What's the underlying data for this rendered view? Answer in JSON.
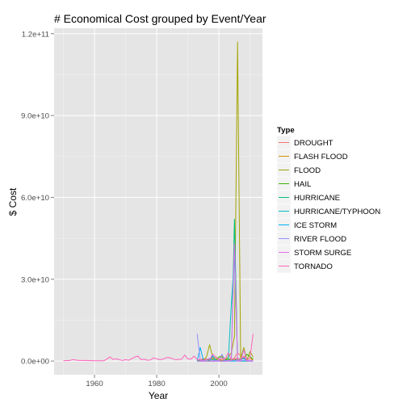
{
  "chart_data": {
    "type": "line",
    "title": "# Economical Cost grouped by Event/Year",
    "xlabel": "Year",
    "ylabel": "$ Cost",
    "xlim": [
      1947,
      2014
    ],
    "ylim": [
      -5000000000,
      122000000000
    ],
    "x_ticks": [
      1960,
      1980,
      2000
    ],
    "x_tick_labels": [
      "1960",
      "1980",
      "2000"
    ],
    "y_ticks": [
      0,
      30000000000,
      60000000000,
      90000000000,
      120000000000
    ],
    "y_tick_labels": [
      "0.0e+00",
      "3.0e+10",
      "6.0e+10",
      "9.0e+10",
      "1.2e+11"
    ],
    "grid": true,
    "legend_title": "Type",
    "legend_position": "right",
    "series": [
      {
        "name": "DROUGHT",
        "color": "#F8766D",
        "x": [
          1993,
          1995,
          1997,
          1998,
          1999,
          2000,
          2001,
          2002,
          2003,
          2004,
          2005,
          2006,
          2007,
          2008,
          2009,
          2010,
          2011
        ],
        "y": [
          0,
          900000000,
          400000000,
          1500000000,
          400000000,
          900000000,
          300000000,
          800000000,
          200000000,
          200000000,
          1200000000,
          3000000000,
          2000000000,
          900000000,
          300000000,
          200000000,
          600000000
        ]
      },
      {
        "name": "FLASH FLOOD",
        "color": "#D89000",
        "x": [
          1993,
          1994,
          1995,
          1996,
          1997,
          1998,
          1999,
          2000,
          2001,
          2002,
          2003,
          2004,
          2005,
          2006,
          2007,
          2008,
          2009,
          2010,
          2011
        ],
        "y": [
          0,
          300000000,
          200000000,
          500000000,
          300000000,
          900000000,
          1400000000,
          400000000,
          200000000,
          300000000,
          500000000,
          300000000,
          700000000,
          600000000,
          200000000,
          1800000000,
          300000000,
          1100000000,
          400000000
        ]
      },
      {
        "name": "FLOOD",
        "color": "#A3A500",
        "x": [
          1993,
          1994,
          1995,
          1996,
          1997,
          1998,
          1999,
          2000,
          2001,
          2002,
          2003,
          2004,
          2005,
          2006,
          2007,
          2008,
          2009,
          2010,
          2011
        ],
        "y": [
          0,
          500000000,
          200000000,
          1500000000,
          6000000000,
          1500000000,
          500000000,
          1500000000,
          2000000000,
          500000000,
          1500000000,
          3000000000,
          9000000000,
          117000000000,
          1000000000,
          5000000000,
          300000000,
          3500000000,
          1500000000
        ]
      },
      {
        "name": "HAIL",
        "color": "#39B600",
        "x": [
          1993,
          1995,
          1997,
          1998,
          1999,
          2000,
          2001,
          2002,
          2003,
          2004,
          2005,
          2006,
          2007,
          2008,
          2009,
          2010,
          2011
        ],
        "y": [
          0,
          600000000,
          300000000,
          700000000,
          300000000,
          1500000000,
          1500000000,
          400000000,
          800000000,
          600000000,
          300000000,
          1000000000,
          700000000,
          1000000000,
          2500000000,
          1500000000,
          800000000
        ]
      },
      {
        "name": "HURRICANE",
        "color": "#00BF7D",
        "x": [
          1993,
          1994,
          1995,
          1996,
          1997,
          1998,
          1999,
          2000,
          2001,
          2002,
          2003,
          2004,
          2005,
          2006,
          2007,
          2008,
          2009,
          2010,
          2011
        ],
        "y": [
          0,
          0,
          0,
          0,
          0,
          0,
          0,
          0,
          0,
          0,
          0,
          0,
          52000000000,
          0,
          0,
          0,
          0,
          0,
          0
        ]
      },
      {
        "name": "HURRICANE/TYPHOON",
        "color": "#00BFC4",
        "x": [
          1993,
          1994,
          1995,
          1996,
          1997,
          1998,
          1999,
          2000,
          2001,
          2002,
          2003,
          2004,
          2005,
          2006,
          2007,
          2008,
          2009,
          2010,
          2011
        ],
        "y": [
          0,
          0,
          0,
          0,
          0,
          0,
          0,
          0,
          0,
          0,
          0,
          21000000000,
          38000000000,
          300000000,
          0,
          0,
          0,
          0,
          0
        ]
      },
      {
        "name": "ICE STORM",
        "color": "#00B0F6",
        "x": [
          1993,
          1994,
          1995,
          1996,
          1997,
          1998,
          1999,
          2000,
          2001,
          2002,
          2003,
          2004,
          2005,
          2006,
          2007,
          2008,
          2009,
          2010,
          2011
        ],
        "y": [
          0,
          5000000000,
          300000000,
          0,
          100000000,
          2000000000,
          200000000,
          100000000,
          0,
          300000000,
          200000000,
          0,
          0,
          100000000,
          500000000,
          1000000000,
          300000000,
          0,
          0
        ]
      },
      {
        "name": "RIVER FLOOD",
        "color": "#9590FF",
        "x": [
          1993,
          1994,
          1995,
          1996,
          1997,
          1998,
          1999,
          2000,
          2001,
          2002,
          2003,
          2004,
          2005,
          2006,
          2007,
          2008,
          2009,
          2010,
          2011
        ],
        "y": [
          10000000000,
          200000000,
          300000000,
          500000000,
          1000000000,
          300000000,
          200000000,
          200000000,
          2500000000,
          100000000,
          300000000,
          200000000,
          300000000,
          200000000,
          100000000,
          300000000,
          100000000,
          200000000,
          100000000
        ]
      },
      {
        "name": "STORM SURGE",
        "color": "#E76BF3",
        "x": [
          1993,
          1994,
          1995,
          1996,
          1997,
          1998,
          1999,
          2000,
          2001,
          2002,
          2003,
          2004,
          2005,
          2006,
          2007,
          2008,
          2009,
          2010,
          2011
        ],
        "y": [
          0,
          0,
          0,
          0,
          0,
          0,
          0,
          0,
          0,
          0,
          0,
          200000000,
          43000000000,
          0,
          0,
          4000000000,
          0,
          0,
          0
        ]
      },
      {
        "name": "TORNADO",
        "color": "#FF62BC",
        "x": [
          1950,
          1952,
          1953,
          1955,
          1957,
          1960,
          1963,
          1965,
          1966,
          1967,
          1969,
          1970,
          1971,
          1973,
          1974,
          1975,
          1976,
          1977,
          1978,
          1979,
          1980,
          1981,
          1982,
          1983,
          1984,
          1985,
          1986,
          1987,
          1988,
          1989,
          1990,
          1991,
          1992,
          1993,
          1994,
          1995,
          1996,
          1997,
          1998,
          1999,
          2000,
          2001,
          2002,
          2003,
          2004,
          2005,
          2006,
          2007,
          2008,
          2009,
          2010,
          2011
        ],
        "y": [
          100000000,
          200000000,
          500000000,
          200000000,
          200000000,
          100000000,
          100000000,
          1500000000,
          600000000,
          800000000,
          200000000,
          500000000,
          300000000,
          1500000000,
          1800000000,
          500000000,
          700000000,
          300000000,
          400000000,
          1200000000,
          800000000,
          500000000,
          700000000,
          1200000000,
          1300000000,
          900000000,
          500000000,
          600000000,
          700000000,
          2200000000,
          800000000,
          700000000,
          1800000000,
          600000000,
          500000000,
          300000000,
          700000000,
          600000000,
          2500000000,
          1500000000,
          600000000,
          1000000000,
          800000000,
          3000000000,
          600000000,
          800000000,
          1000000000,
          600000000,
          1700000000,
          400000000,
          1200000000,
          10000000000
        ]
      }
    ]
  }
}
